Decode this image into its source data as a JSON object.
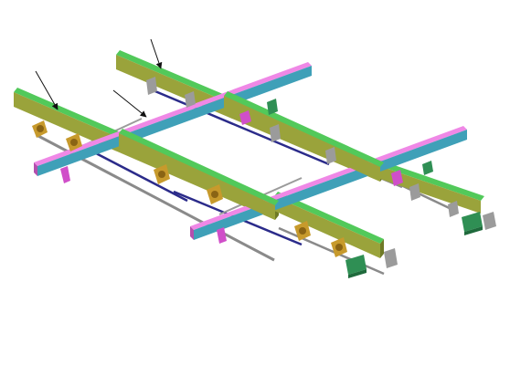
{
  "diagram": {
    "view": "isometric-3d-assembly",
    "background": "#ffffff",
    "colors": {
      "green_beam_top": "#52c95a",
      "green_beam_side": "#9aa33b",
      "pink_beam_top": "#ef88e6",
      "pink_beam_side": "#3fa0b8",
      "rod": "#2b2b8a",
      "rod_light": "#8a8a8a",
      "bracket_orange": "#c79a2c",
      "bracket_magenta": "#d04fc9",
      "motor_green": "#2f8f54",
      "gray_part": "#9b9b9b",
      "arrow": "#111111"
    },
    "beam_groups": {
      "longitudinal": [
        "beam-left",
        "beam-center",
        "beam-right"
      ],
      "transverse": [
        "crossbar-front",
        "crossbar-rear"
      ]
    },
    "callout_arrows": 3,
    "motor_units": 2
  }
}
